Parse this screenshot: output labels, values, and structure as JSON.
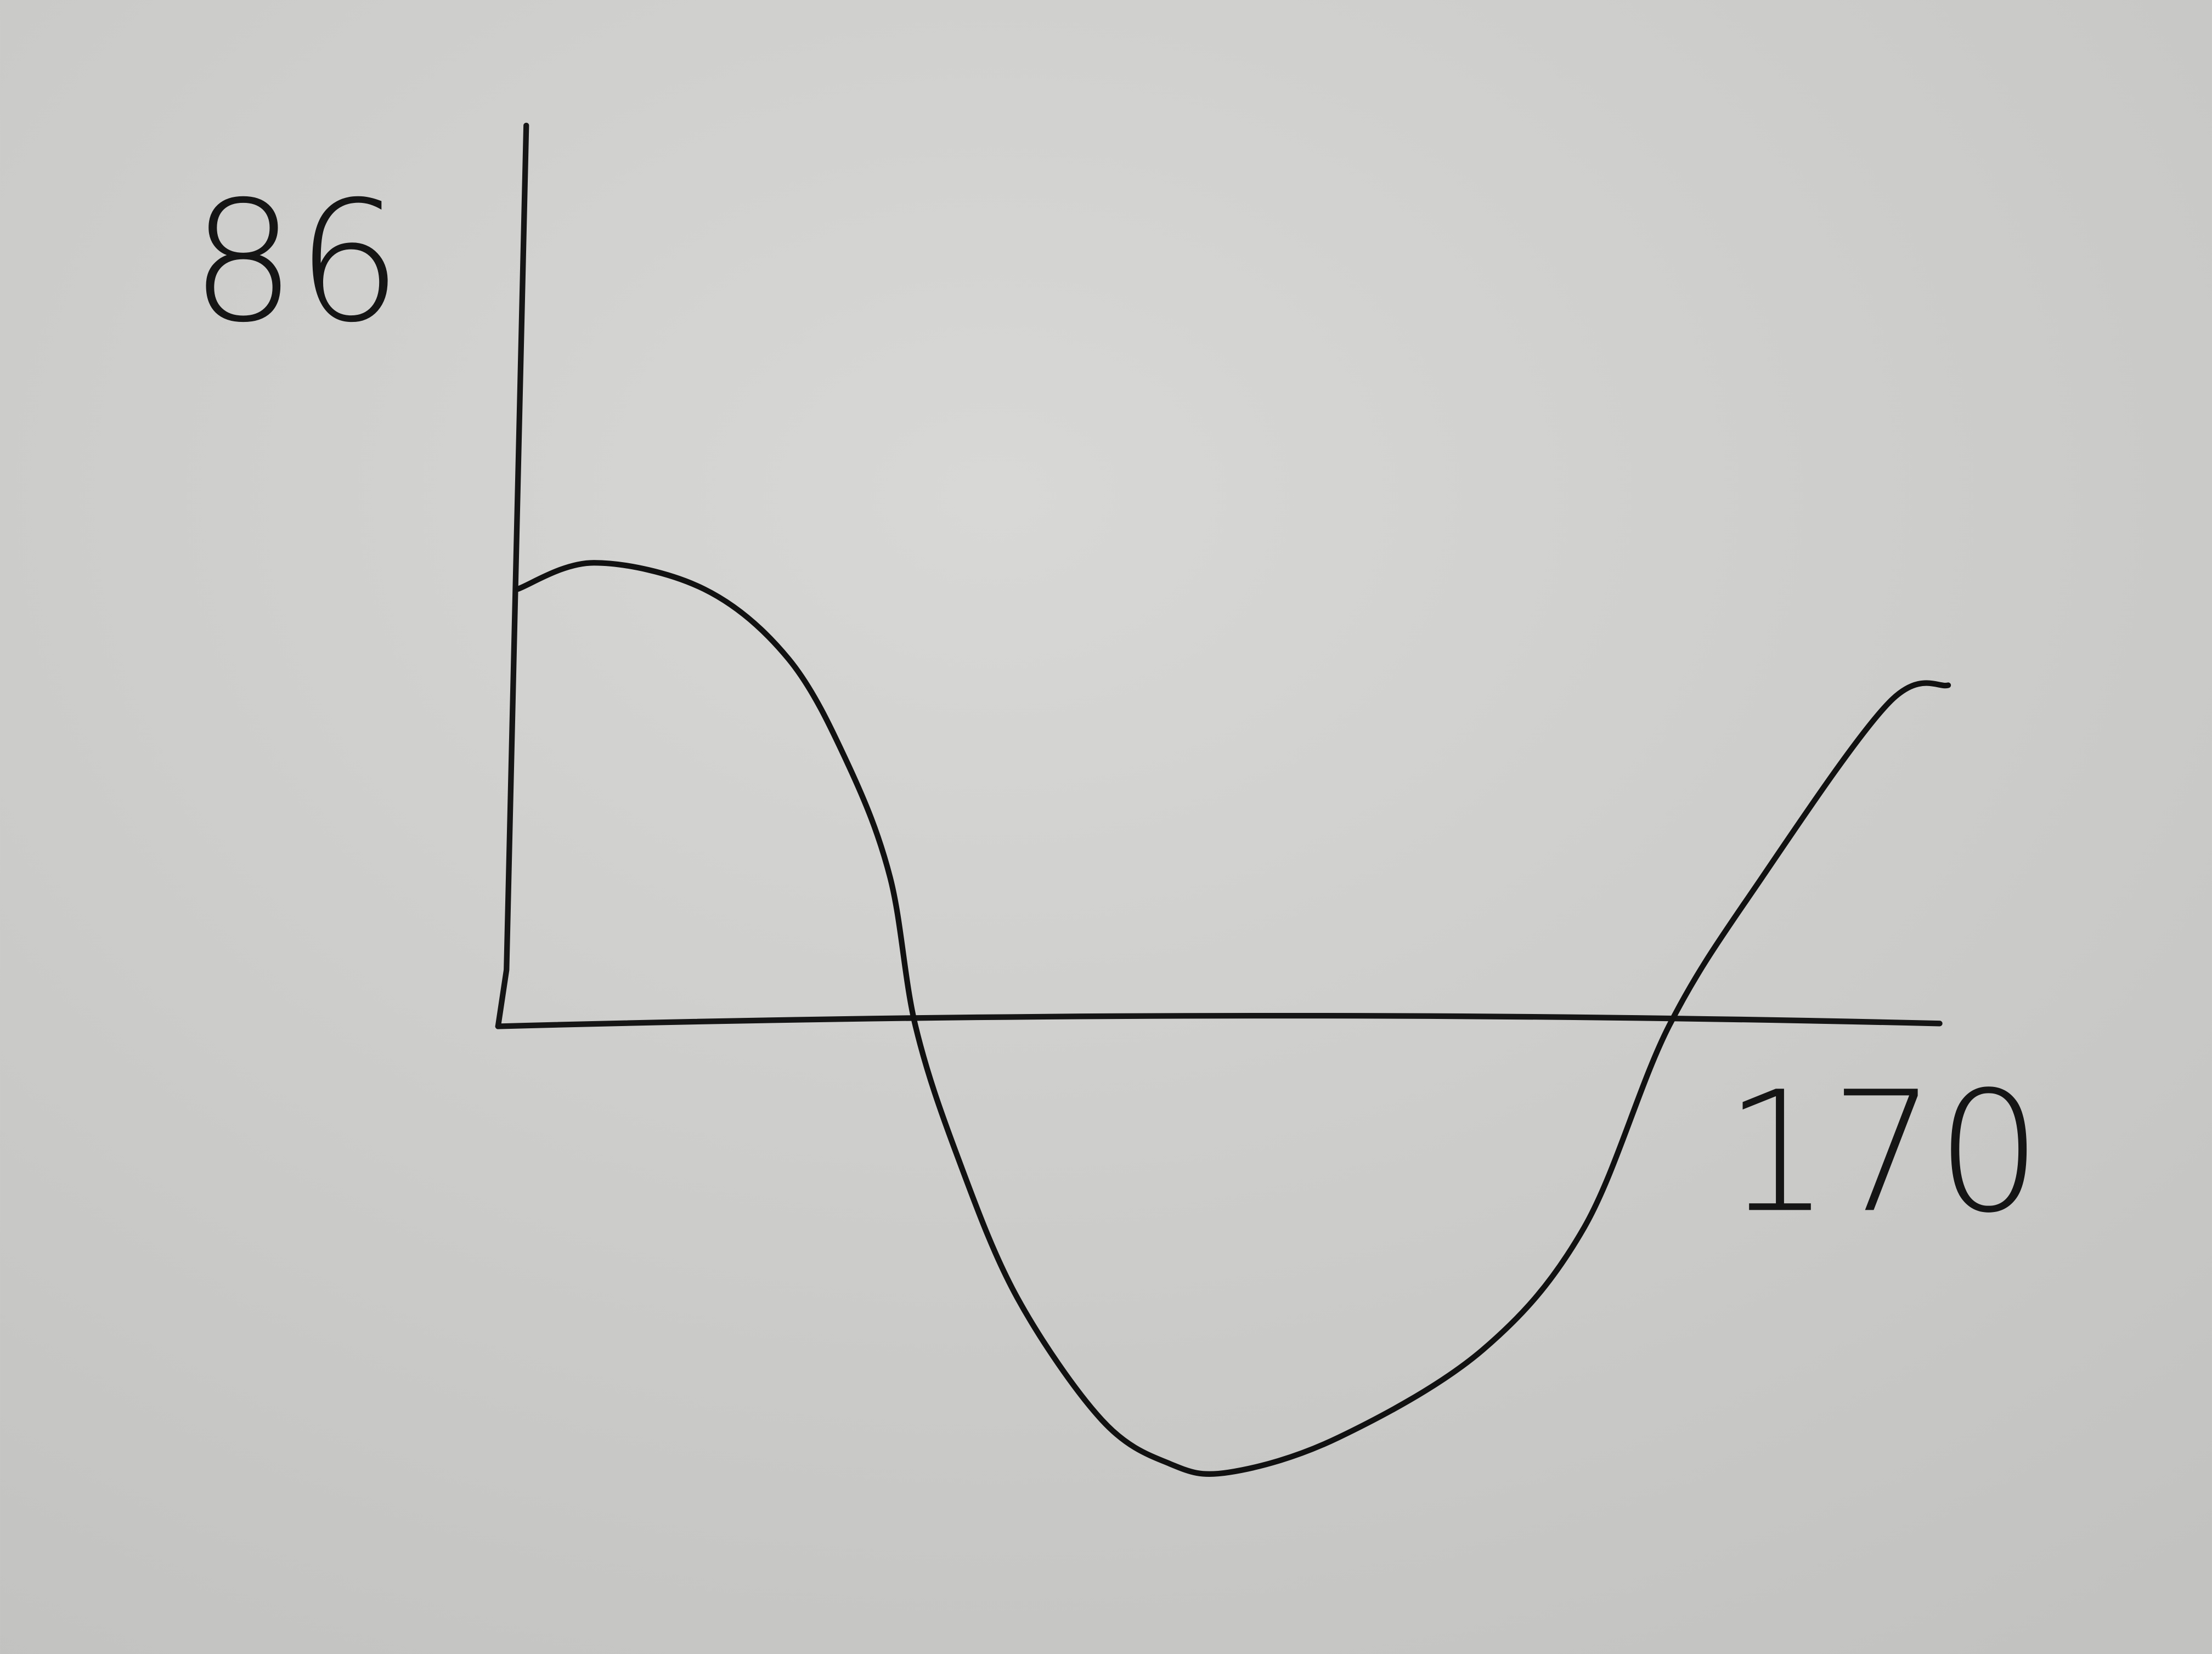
{
  "chart_data": {
    "type": "line",
    "x": [
      2,
      11,
      24,
      34,
      41,
      46,
      49,
      54,
      61,
      71,
      79,
      86,
      99,
      116,
      128,
      138,
      149,
      164,
      171
    ],
    "values": [
      50,
      53,
      50,
      42,
      30,
      17,
      0,
      -15,
      -31,
      -45,
      -50,
      -51,
      -47,
      -37,
      -23,
      0,
      17,
      37,
      39
    ],
    "color": "#111111",
    "xlim": [
      0,
      172
    ],
    "xticks": [
      170
    ],
    "ylim": [
      -55,
      103
    ],
    "yticks": [
      86
    ]
  }
}
